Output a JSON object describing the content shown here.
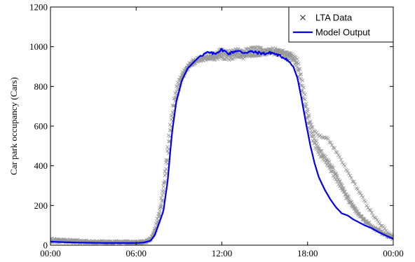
{
  "chart_data": {
    "type": "line",
    "title": "",
    "xlabel": "",
    "ylabel": "Car park occupancy (Cars)",
    "xlim": [
      0,
      24
    ],
    "ylim": [
      0,
      1200
    ],
    "x_ticks": [
      {
        "value": 0,
        "label": "00:00"
      },
      {
        "value": 6,
        "label": "06:00"
      },
      {
        "value": 12,
        "label": "12:00"
      },
      {
        "value": 18,
        "label": "18:00"
      },
      {
        "value": 24,
        "label": "00:00"
      }
    ],
    "y_ticks": [
      0,
      200,
      400,
      600,
      800,
      1000,
      1200
    ],
    "grid": false,
    "legend_position": "top-right",
    "series": [
      {
        "name": "LTA Data",
        "style": "scatter",
        "marker": "x",
        "color": "#999999",
        "days": [
          [
            [
              0,
              25
            ],
            [
              1,
              22
            ],
            [
              2,
              18
            ],
            [
              3,
              16
            ],
            [
              4,
              15
            ],
            [
              5,
              14
            ],
            [
              6,
              14
            ],
            [
              6.5,
              16
            ],
            [
              7,
              28
            ],
            [
              7.3,
              70
            ],
            [
              7.6,
              150
            ],
            [
              7.9,
              280
            ],
            [
              8.2,
              480
            ],
            [
              8.5,
              650
            ],
            [
              8.8,
              770
            ],
            [
              9.2,
              850
            ],
            [
              9.6,
              900
            ],
            [
              10,
              925
            ],
            [
              10.5,
              935
            ],
            [
              11,
              945
            ],
            [
              11.5,
              945
            ],
            [
              12,
              960
            ],
            [
              12.5,
              955
            ],
            [
              13,
              965
            ],
            [
              13.5,
              955
            ],
            [
              14,
              965
            ],
            [
              14.5,
              960
            ],
            [
              15,
              975
            ],
            [
              15.5,
              975
            ],
            [
              16,
              970
            ],
            [
              16.5,
              965
            ],
            [
              17,
              945
            ],
            [
              17.3,
              915
            ],
            [
              17.6,
              820
            ],
            [
              17.9,
              700
            ],
            [
              18.2,
              620
            ],
            [
              18.5,
              570
            ],
            [
              18.8,
              550
            ],
            [
              19.2,
              545
            ],
            [
              19.6,
              520
            ],
            [
              20,
              470
            ],
            [
              20.4,
              420
            ],
            [
              20.8,
              370
            ],
            [
              21.2,
              320
            ],
            [
              21.6,
              270
            ],
            [
              22,
              220
            ],
            [
              22.5,
              160
            ],
            [
              23,
              110
            ],
            [
              23.5,
              75
            ],
            [
              24,
              45
            ]
          ],
          [
            [
              0,
              20
            ],
            [
              1,
              18
            ],
            [
              2,
              16
            ],
            [
              3,
              15
            ],
            [
              4,
              14
            ],
            [
              5,
              13
            ],
            [
              6,
              13
            ],
            [
              6.5,
              15
            ],
            [
              7,
              25
            ],
            [
              7.3,
              60
            ],
            [
              7.6,
              130
            ],
            [
              7.9,
              250
            ],
            [
              8.2,
              420
            ],
            [
              8.5,
              600
            ],
            [
              8.8,
              740
            ],
            [
              9.2,
              840
            ],
            [
              9.6,
              890
            ],
            [
              10,
              915
            ],
            [
              10.5,
              930
            ],
            [
              11,
              940
            ],
            [
              11.5,
              940
            ],
            [
              12,
              945
            ],
            [
              12.5,
              935
            ],
            [
              13,
              950
            ],
            [
              13.5,
              945
            ],
            [
              14,
              955
            ],
            [
              14.5,
              955
            ],
            [
              15,
              960
            ],
            [
              15.5,
              965
            ],
            [
              16,
              960
            ],
            [
              16.5,
              955
            ],
            [
              17,
              930
            ],
            [
              17.3,
              880
            ],
            [
              17.6,
              760
            ],
            [
              17.9,
              640
            ],
            [
              18.2,
              560
            ],
            [
              18.5,
              500
            ],
            [
              18.8,
              460
            ],
            [
              19.2,
              420
            ],
            [
              19.6,
              380
            ],
            [
              20,
              330
            ],
            [
              20.4,
              280
            ],
            [
              20.8,
              230
            ],
            [
              21.2,
              190
            ],
            [
              21.6,
              150
            ],
            [
              22,
              120
            ],
            [
              22.5,
              90
            ],
            [
              23,
              70
            ],
            [
              23.5,
              50
            ],
            [
              24,
              30
            ]
          ],
          [
            [
              0,
              30
            ],
            [
              1,
              25
            ],
            [
              2,
              20
            ],
            [
              3,
              18
            ],
            [
              4,
              16
            ],
            [
              5,
              15
            ],
            [
              6,
              15
            ],
            [
              6.5,
              17
            ],
            [
              7,
              30
            ],
            [
              7.3,
              80
            ],
            [
              7.6,
              170
            ],
            [
              7.9,
              300
            ],
            [
              8.2,
              500
            ],
            [
              8.5,
              680
            ],
            [
              8.8,
              800
            ],
            [
              9.2,
              865
            ],
            [
              9.6,
              905
            ],
            [
              10,
              930
            ],
            [
              10.5,
              945
            ],
            [
              11,
              955
            ],
            [
              11.5,
              960
            ],
            [
              12,
              990
            ],
            [
              12.5,
              975
            ],
            [
              13,
              985
            ],
            [
              13.5,
              980
            ],
            [
              14,
              990
            ],
            [
              14.5,
              995
            ],
            [
              15,
              985
            ],
            [
              15.5,
              990
            ],
            [
              16,
              985
            ],
            [
              16.5,
              975
            ],
            [
              17,
              960
            ],
            [
              17.3,
              935
            ],
            [
              17.6,
              850
            ],
            [
              17.9,
              720
            ],
            [
              18.2,
              610
            ],
            [
              18.5,
              540
            ],
            [
              18.8,
              490
            ],
            [
              19.2,
              450
            ],
            [
              19.6,
              410
            ],
            [
              20,
              360
            ],
            [
              20.4,
              300
            ],
            [
              20.8,
              250
            ],
            [
              21.2,
              200
            ],
            [
              21.6,
              160
            ],
            [
              22,
              130
            ],
            [
              22.5,
              100
            ],
            [
              23,
              75
            ],
            [
              23.5,
              55
            ],
            [
              24,
              35
            ]
          ],
          [
            [
              0,
              22
            ],
            [
              1,
              20
            ],
            [
              2,
              17
            ],
            [
              3,
              15
            ],
            [
              4,
              14
            ],
            [
              5,
              14
            ],
            [
              6,
              14
            ],
            [
              6.5,
              16
            ],
            [
              7,
              26
            ],
            [
              7.3,
              65
            ],
            [
              7.6,
              140
            ],
            [
              7.9,
              260
            ],
            [
              8.2,
              440
            ],
            [
              8.5,
              620
            ],
            [
              8.8,
              750
            ],
            [
              9.2,
              845
            ],
            [
              9.6,
              895
            ],
            [
              10,
              920
            ],
            [
              10.5,
              935
            ],
            [
              11,
              945
            ],
            [
              11.5,
              950
            ],
            [
              12,
              970
            ],
            [
              12.5,
              960
            ],
            [
              13,
              970
            ],
            [
              13.5,
              965
            ],
            [
              14,
              975
            ],
            [
              14.5,
              980
            ],
            [
              15,
              980
            ],
            [
              15.5,
              985
            ],
            [
              16,
              975
            ],
            [
              16.5,
              965
            ],
            [
              17,
              945
            ],
            [
              17.3,
              900
            ],
            [
              17.6,
              790
            ],
            [
              17.9,
              670
            ],
            [
              18.2,
              580
            ],
            [
              18.5,
              520
            ],
            [
              18.8,
              480
            ],
            [
              19.2,
              440
            ],
            [
              19.6,
              400
            ],
            [
              20,
              350
            ],
            [
              20.4,
              295
            ],
            [
              20.8,
              240
            ],
            [
              21.2,
              195
            ],
            [
              21.6,
              155
            ],
            [
              22,
              125
            ],
            [
              22.5,
              95
            ],
            [
              23,
              72
            ],
            [
              23.5,
              52
            ],
            [
              24,
              32
            ]
          ]
        ]
      },
      {
        "name": "Model Output",
        "style": "line",
        "color": "#0000ee",
        "points": [
          [
            0,
            18
          ],
          [
            1,
            15
          ],
          [
            2,
            13
          ],
          [
            3,
            12
          ],
          [
            4,
            11
          ],
          [
            5,
            11
          ],
          [
            6,
            11
          ],
          [
            6.5,
            13
          ],
          [
            7,
            22
          ],
          [
            7.3,
            50
          ],
          [
            7.6,
            110
          ],
          [
            7.9,
            170
          ],
          [
            8.2,
            320
          ],
          [
            8.5,
            560
          ],
          [
            8.8,
            720
          ],
          [
            9.2,
            830
          ],
          [
            9.6,
            890
          ],
          [
            10,
            920
          ],
          [
            10.5,
            955
          ],
          [
            11,
            970
          ],
          [
            11.5,
            965
          ],
          [
            12,
            985
          ],
          [
            12.5,
            965
          ],
          [
            13,
            980
          ],
          [
            13.5,
            970
          ],
          [
            14,
            975
          ],
          [
            14.5,
            970
          ],
          [
            15,
            965
          ],
          [
            15.5,
            970
          ],
          [
            16,
            955
          ],
          [
            16.5,
            940
          ],
          [
            17,
            900
          ],
          [
            17.3,
            840
          ],
          [
            17.6,
            730
          ],
          [
            17.9,
            610
          ],
          [
            18.2,
            500
          ],
          [
            18.5,
            410
          ],
          [
            18.8,
            340
          ],
          [
            19.2,
            280
          ],
          [
            19.6,
            230
          ],
          [
            20,
            190
          ],
          [
            20.4,
            160
          ],
          [
            20.8,
            150
          ],
          [
            21.2,
            130
          ],
          [
            21.6,
            115
          ],
          [
            22,
            100
          ],
          [
            22.5,
            85
          ],
          [
            23,
            65
          ],
          [
            23.5,
            48
          ],
          [
            24,
            32
          ]
        ]
      }
    ]
  }
}
